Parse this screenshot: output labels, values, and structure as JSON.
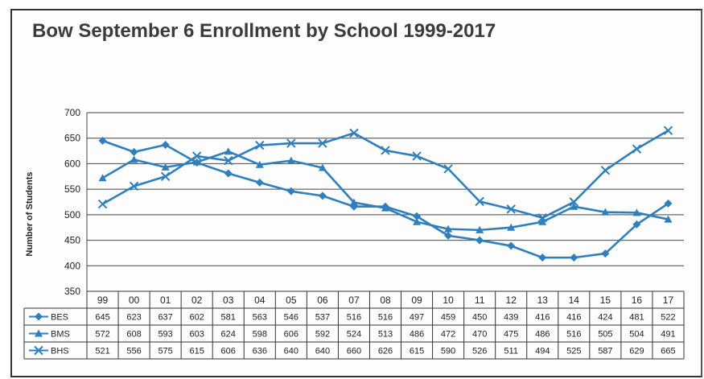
{
  "chart_data": {
    "type": "line",
    "title": "Bow September 6 Enrollment by School 1999-2017",
    "ylabel": "Number of Students",
    "xlabel": "",
    "ylim": [
      350,
      700
    ],
    "yticks": [
      350,
      400,
      450,
      500,
      550,
      600,
      650,
      700
    ],
    "grid": true,
    "legend": "data-table",
    "categories": [
      "99",
      "00",
      "01",
      "02",
      "03",
      "04",
      "05",
      "06",
      "07",
      "08",
      "09",
      "10",
      "11",
      "12",
      "13",
      "14",
      "15",
      "16",
      "17"
    ],
    "series": [
      {
        "name": "BES",
        "marker": "diamond",
        "values": [
          645,
          623,
          637,
          602,
          581,
          563,
          546,
          537,
          516,
          516,
          497,
          459,
          450,
          439,
          416,
          416,
          424,
          481,
          522
        ]
      },
      {
        "name": "BMS",
        "marker": "triangle",
        "values": [
          572,
          608,
          593,
          603,
          624,
          598,
          606,
          592,
          524,
          513,
          486,
          472,
          470,
          475,
          486,
          516,
          505,
          504,
          491
        ]
      },
      {
        "name": "BHS",
        "marker": "x",
        "values": [
          521,
          556,
          575,
          615,
          606,
          636,
          640,
          640,
          660,
          626,
          615,
          590,
          526,
          511,
          494,
          525,
          587,
          629,
          665
        ]
      }
    ],
    "line_color": "#2f7fbf"
  }
}
